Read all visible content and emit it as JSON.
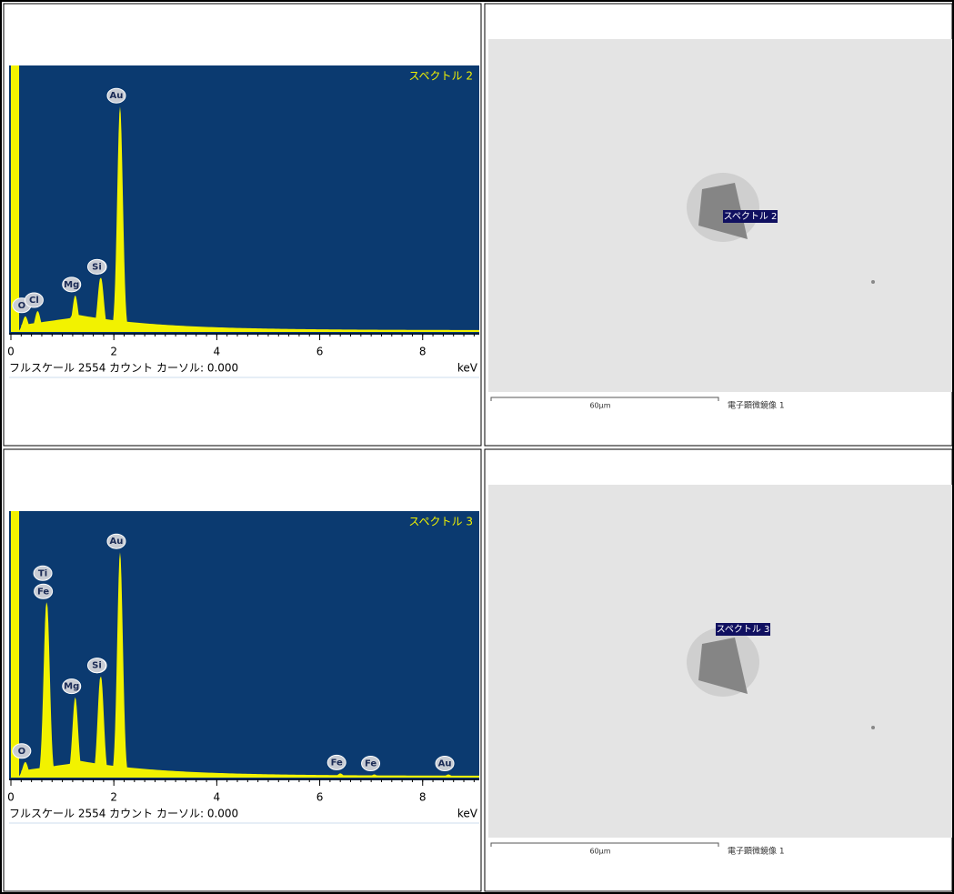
{
  "rows": [
    {
      "spectrum": {
        "title": "スペクトル 2",
        "xlim": [
          0,
          9.1
        ],
        "xticks": [
          0,
          2,
          4,
          6,
          8
        ],
        "full_scale_label": "フルスケール",
        "full_scale": 2554,
        "full_scale_unit": "カウント",
        "cursor": "カーソル: 0.000",
        "x_unit": "keV",
        "peaks": [
          {
            "element": "O",
            "kev": 0.28,
            "counts": 150
          },
          {
            "element": "Cl",
            "kev": 0.52,
            "counts": 200
          },
          {
            "element": "Mg",
            "kev": 1.25,
            "counts": 350
          },
          {
            "element": "Au",
            "kev": 1.75,
            "counts": 520
          },
          {
            "element": "Si",
            "kev": 1.74,
            "counts": 520
          },
          {
            "element": "Au",
            "kev": 2.12,
            "counts": 2160
          }
        ]
      },
      "image": {
        "label": "スペクトル 2",
        "scale": "60μm",
        "caption": "電子顕微鏡像 1"
      }
    },
    {
      "spectrum": {
        "title": "スペクトル 3",
        "xlim": [
          0,
          9.1
        ],
        "xticks": [
          0,
          2,
          4,
          6,
          8
        ],
        "full_scale_label": "フルスケール",
        "full_scale": 2554,
        "full_scale_unit": "カウント",
        "cursor": "カーソル: 0.000",
        "x_unit": "keV",
        "peaks": [
          {
            "element": "O",
            "kev": 0.28,
            "counts": 150
          },
          {
            "element": "Fe",
            "kev": 0.7,
            "counts": 1680
          },
          {
            "element": "Ti",
            "kev": 0.69,
            "counts": 1680
          },
          {
            "element": "Mg",
            "kev": 1.25,
            "counts": 770
          },
          {
            "element": "Au",
            "kev": 1.75,
            "counts": 970
          },
          {
            "element": "Si",
            "kev": 1.74,
            "counts": 970
          },
          {
            "element": "Au",
            "kev": 2.12,
            "counts": 2160
          },
          {
            "element": "Fe",
            "kev": 6.4,
            "counts": 40
          },
          {
            "element": "Fe",
            "kev": 7.06,
            "counts": 30
          },
          {
            "element": "Au",
            "kev": 8.5,
            "counts": 30
          }
        ]
      },
      "image": {
        "label": "スペクトル 3",
        "scale": "60μm",
        "caption": "電子顕微鏡像 1"
      }
    }
  ]
}
